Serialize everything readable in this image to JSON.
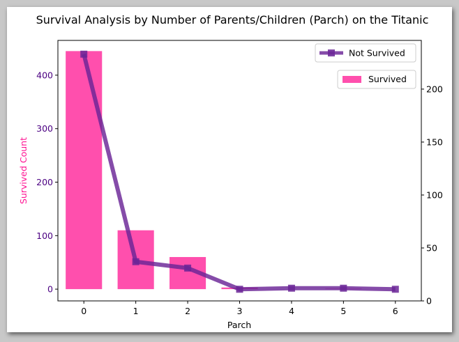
{
  "chart_data": {
    "type": "bar",
    "title": "Survival Analysis by Number of Parents/Children (Parch) on the Titanic",
    "xlabel": "Parch",
    "ylabel_left": "Survived Count",
    "ylabel_right": "",
    "categories": [
      "0",
      "1",
      "2",
      "3",
      "4",
      "5",
      "6"
    ],
    "x": [
      0,
      1,
      2,
      3,
      4,
      5,
      6
    ],
    "xlim": [
      -0.5,
      6.5
    ],
    "ylim_left": [
      -22,
      465
    ],
    "ylim_right": [
      0,
      246
    ],
    "yticks_left": [
      0,
      100,
      200,
      300,
      400
    ],
    "yticks_right": [
      0,
      50,
      100,
      150,
      200
    ],
    "grid": false,
    "series": [
      {
        "name": "Survived",
        "kind": "bar",
        "axis": "left",
        "color": "#ff4fad",
        "values": [
          445,
          110,
          60,
          3,
          0,
          1,
          0
        ]
      },
      {
        "name": "Not Survived",
        "kind": "line",
        "axis": "right",
        "color": "#6a2596",
        "marker": "square",
        "values": [
          233,
          37,
          31,
          11,
          12,
          12,
          11
        ]
      }
    ],
    "legend": [
      {
        "label": "Not Survived",
        "placement": "top-right"
      },
      {
        "label": "Survived",
        "placement": "top-right"
      }
    ],
    "colors": {
      "left_tick_label": "#4b0082",
      "left_axis_label": "#ff1493",
      "text": "#000000"
    }
  }
}
